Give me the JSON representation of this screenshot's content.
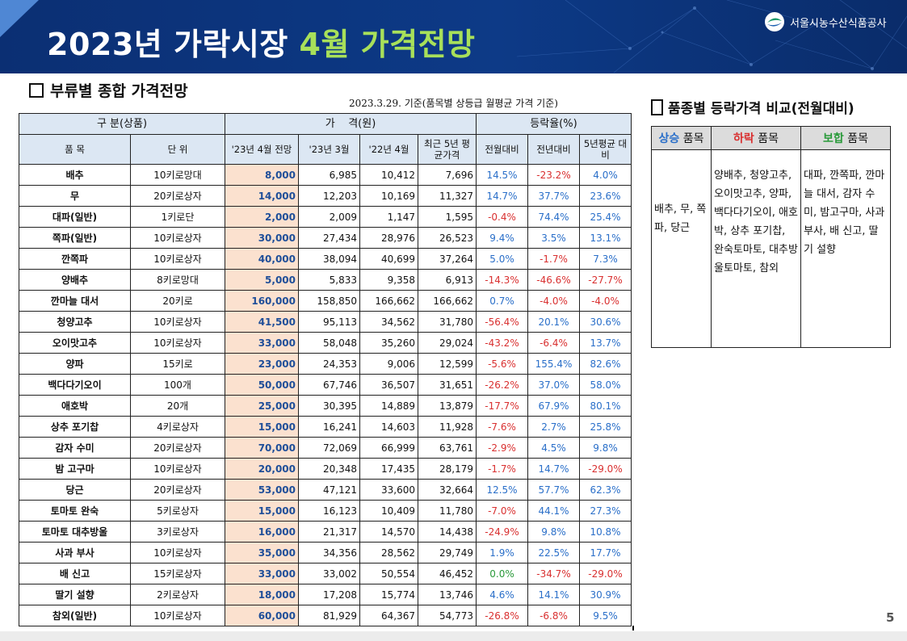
{
  "header": {
    "title_part1": "2023년 가락시장 ",
    "title_highlight": "4월 가격전망",
    "org": "서울시농수산식품공사"
  },
  "section1": {
    "title": "부류별 종합 가격전망",
    "basis": "2023.3.29. 기준(품목별 상등급 월평균 가격 기준)"
  },
  "table": {
    "group_headers": {
      "category": "구 분(상품)",
      "price": "가    격(원)",
      "rate": "등락율(%)"
    },
    "columns": [
      "품 목",
      "단 위",
      "'23년 4월 전망",
      "'23년 3월",
      "'22년 4월",
      "최근 5년 평균가격",
      "전월대비",
      "전년대비",
      "5년평균 대비"
    ],
    "rows": [
      {
        "item": "배추",
        "unit": "10키로망대",
        "forecast": "8,000",
        "mar23": "6,985",
        "apr22": "10,412",
        "avg5": "7,696",
        "mom": "14.5%",
        "yoy": "-23.2%",
        "v5": "4.0%"
      },
      {
        "item": "무",
        "unit": "20키로상자",
        "forecast": "14,000",
        "mar23": "12,203",
        "apr22": "10,169",
        "avg5": "11,327",
        "mom": "14.7%",
        "yoy": "37.7%",
        "v5": "23.6%"
      },
      {
        "item": "대파(일반)",
        "unit": "1키로단",
        "forecast": "2,000",
        "mar23": "2,009",
        "apr22": "1,147",
        "avg5": "1,595",
        "mom": "-0.4%",
        "yoy": "74.4%",
        "v5": "25.4%"
      },
      {
        "item": "쪽파(일반)",
        "unit": "10키로상자",
        "forecast": "30,000",
        "mar23": "27,434",
        "apr22": "28,976",
        "avg5": "26,523",
        "mom": "9.4%",
        "yoy": "3.5%",
        "v5": "13.1%"
      },
      {
        "item": "깐쪽파",
        "unit": "10키로상자",
        "forecast": "40,000",
        "mar23": "38,094",
        "apr22": "40,699",
        "avg5": "37,264",
        "mom": "5.0%",
        "yoy": "-1.7%",
        "v5": "7.3%"
      },
      {
        "item": "양배추",
        "unit": "8키로망대",
        "forecast": "5,000",
        "mar23": "5,833",
        "apr22": "9,358",
        "avg5": "6,913",
        "mom": "-14.3%",
        "yoy": "-46.6%",
        "v5": "-27.7%"
      },
      {
        "item": "깐마늘 대서",
        "unit": "20키로",
        "forecast": "160,000",
        "mar23": "158,850",
        "apr22": "166,662",
        "avg5": "166,662",
        "mom": "0.7%",
        "yoy": "-4.0%",
        "v5": "-4.0%"
      },
      {
        "item": "청양고추",
        "unit": "10키로상자",
        "forecast": "41,500",
        "mar23": "95,113",
        "apr22": "34,562",
        "avg5": "31,780",
        "mom": "-56.4%",
        "yoy": "20.1%",
        "v5": "30.6%"
      },
      {
        "item": "오이맛고추",
        "unit": "10키로상자",
        "forecast": "33,000",
        "mar23": "58,048",
        "apr22": "35,260",
        "avg5": "29,024",
        "mom": "-43.2%",
        "yoy": "-6.4%",
        "v5": "13.7%"
      },
      {
        "item": "양파",
        "unit": "15키로",
        "forecast": "23,000",
        "mar23": "24,353",
        "apr22": "9,006",
        "avg5": "12,599",
        "mom": "-5.6%",
        "yoy": "155.4%",
        "v5": "82.6%"
      },
      {
        "item": "백다다기오이",
        "unit": "100개",
        "forecast": "50,000",
        "mar23": "67,746",
        "apr22": "36,507",
        "avg5": "31,651",
        "mom": "-26.2%",
        "yoy": "37.0%",
        "v5": "58.0%"
      },
      {
        "item": "애호박",
        "unit": "20개",
        "forecast": "25,000",
        "mar23": "30,395",
        "apr22": "14,889",
        "avg5": "13,879",
        "mom": "-17.7%",
        "yoy": "67.9%",
        "v5": "80.1%"
      },
      {
        "item": "상추 포기찹",
        "unit": "4키로상자",
        "forecast": "15,000",
        "mar23": "16,241",
        "apr22": "14,603",
        "avg5": "11,928",
        "mom": "-7.6%",
        "yoy": "2.7%",
        "v5": "25.8%"
      },
      {
        "item": "감자 수미",
        "unit": "20키로상자",
        "forecast": "70,000",
        "mar23": "72,069",
        "apr22": "66,999",
        "avg5": "63,761",
        "mom": "-2.9%",
        "yoy": "4.5%",
        "v5": "9.8%"
      },
      {
        "item": "밤 고구마",
        "unit": "10키로상자",
        "forecast": "20,000",
        "mar23": "20,348",
        "apr22": "17,435",
        "avg5": "28,179",
        "mom": "-1.7%",
        "yoy": "14.7%",
        "v5": "-29.0%"
      },
      {
        "item": "당근",
        "unit": "20키로상자",
        "forecast": "53,000",
        "mar23": "47,121",
        "apr22": "33,600",
        "avg5": "32,664",
        "mom": "12.5%",
        "yoy": "57.7%",
        "v5": "62.3%"
      },
      {
        "item": "토마토 완숙",
        "unit": "5키로상자",
        "forecast": "15,000",
        "mar23": "16,123",
        "apr22": "10,409",
        "avg5": "11,780",
        "mom": "-7.0%",
        "yoy": "44.1%",
        "v5": "27.3%"
      },
      {
        "item": "토마토 대추방울",
        "unit": "3키로상자",
        "forecast": "16,000",
        "mar23": "21,317",
        "apr22": "14,570",
        "avg5": "14,438",
        "mom": "-24.9%",
        "yoy": "9.8%",
        "v5": "10.8%"
      },
      {
        "item": "사과 부사",
        "unit": "10키로상자",
        "forecast": "35,000",
        "mar23": "34,356",
        "apr22": "28,562",
        "avg5": "29,749",
        "mom": "1.9%",
        "yoy": "22.5%",
        "v5": "17.7%"
      },
      {
        "item": "배 신고",
        "unit": "15키로상자",
        "forecast": "33,000",
        "mar23": "33,002",
        "apr22": "50,554",
        "avg5": "46,452",
        "mom": "0.0%",
        "yoy": "-34.7%",
        "v5": "-29.0%"
      },
      {
        "item": "딸기 설향",
        "unit": "2키로상자",
        "forecast": "18,000",
        "mar23": "17,208",
        "apr22": "15,774",
        "avg5": "13,746",
        "mom": "4.6%",
        "yoy": "14.1%",
        "v5": "30.9%"
      },
      {
        "item": "참외(일반)",
        "unit": "10키로상자",
        "forecast": "60,000",
        "mar23": "81,929",
        "apr22": "64,367",
        "avg5": "54,773",
        "mom": "-26.8%",
        "yoy": "-6.8%",
        "v5": "9.5%"
      }
    ]
  },
  "section2": {
    "title": "품종별 등락가격 비교(전월대비)",
    "headers": [
      {
        "key": "상승",
        "suffix": " 품목"
      },
      {
        "key": "하락",
        "suffix": " 품목"
      },
      {
        "key": "보합",
        "suffix": " 품목"
      }
    ],
    "rising": "배추, 무, 쪽파, 당근",
    "falling": "양배추, 청양고추, 오이맛고추, 양파, 백다다기오이, 애호박, 상추 포기찹, 완숙토마토, 대추방울토마토, 참외",
    "flat": "대파, 깐쪽파, 깐마늘 대서, 감자 수미, 밤고구마, 사과 부사, 배 신고, 딸기 설향"
  },
  "colors": {
    "header_bg": "#0d3a87",
    "title_highlight": "#a8e05a",
    "rise": "#2a6fc9",
    "fall": "#d93030",
    "flat": "#2a9a3a",
    "forecast_bg": "#fbe1cf",
    "table_header_bg": "#dce7f3"
  },
  "page_number": "5"
}
